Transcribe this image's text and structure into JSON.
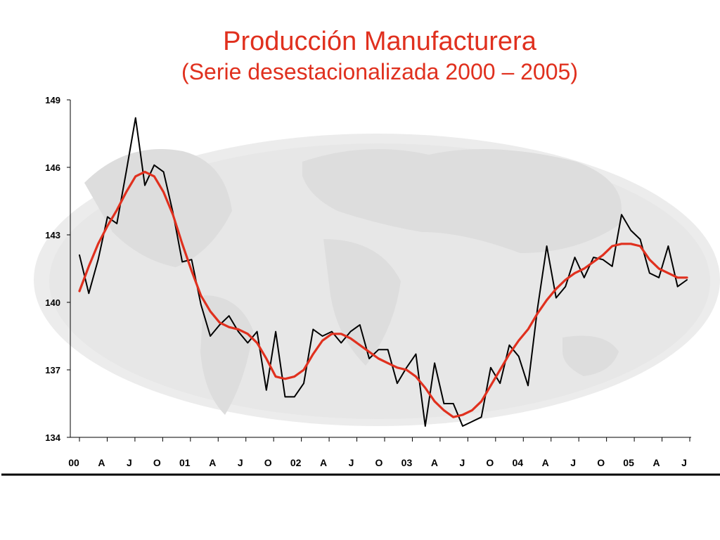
{
  "chart_data": {
    "type": "line",
    "title": "Producción Manufacturera",
    "subtitle": "(Serie desestacionalizada 2000 – 2005)",
    "xlabel": "",
    "ylabel": "",
    "ylim": [
      134,
      149
    ],
    "yticks": [
      "134",
      "137",
      "140",
      "143",
      "146",
      "149"
    ],
    "xtick_labels": [
      "00",
      "A",
      "J",
      "O",
      "01",
      "A",
      "J",
      "O",
      "02",
      "A",
      "J",
      "O",
      "03",
      "A",
      "J",
      "O",
      "04",
      "A",
      "J",
      "O",
      "05",
      "A",
      "J"
    ],
    "grid": false,
    "legend": "none",
    "background": "faded world map",
    "series": [
      {
        "color": "#000000",
        "values": [
          142.1,
          140.4,
          141.9,
          143.8,
          143.5,
          145.8,
          148.2,
          145.2,
          146.1,
          145.8,
          144.0,
          141.8,
          141.9,
          139.9,
          138.5,
          139.0,
          139.4,
          138.7,
          138.2,
          138.7,
          136.1,
          138.7,
          135.8,
          135.8,
          136.4,
          138.8,
          138.5,
          138.7,
          138.2,
          138.7,
          139.0,
          137.5,
          137.9,
          137.9,
          136.4,
          137.1,
          137.7,
          134.5,
          137.3,
          135.5,
          135.5,
          134.5,
          134.7,
          134.9,
          137.1,
          136.4,
          138.1,
          137.6,
          136.3,
          139.7,
          142.5,
          140.2,
          140.7,
          142.0,
          141.1,
          142.0,
          141.9,
          141.6,
          143.9,
          143.2,
          142.8,
          141.3,
          141.1,
          142.5,
          140.7,
          141.0
        ]
      },
      {
        "color": "#e0301e",
        "values": [
          140.5,
          141.6,
          142.6,
          143.4,
          144.1,
          144.9,
          145.6,
          145.8,
          145.6,
          144.9,
          143.9,
          142.6,
          141.4,
          140.3,
          139.6,
          139.1,
          138.9,
          138.8,
          138.6,
          138.2,
          137.5,
          136.7,
          136.6,
          136.7,
          137.0,
          137.7,
          138.3,
          138.6,
          138.6,
          138.4,
          138.1,
          137.8,
          137.5,
          137.3,
          137.1,
          137.0,
          136.7,
          136.2,
          135.6,
          135.2,
          134.9,
          135.0,
          135.2,
          135.6,
          136.3,
          137.0,
          137.7,
          138.3,
          138.8,
          139.5,
          140.1,
          140.6,
          141.0,
          141.3,
          141.5,
          141.8,
          142.1,
          142.5,
          142.6,
          142.6,
          142.5,
          141.9,
          141.5,
          141.3,
          141.1,
          141.1
        ]
      }
    ]
  }
}
